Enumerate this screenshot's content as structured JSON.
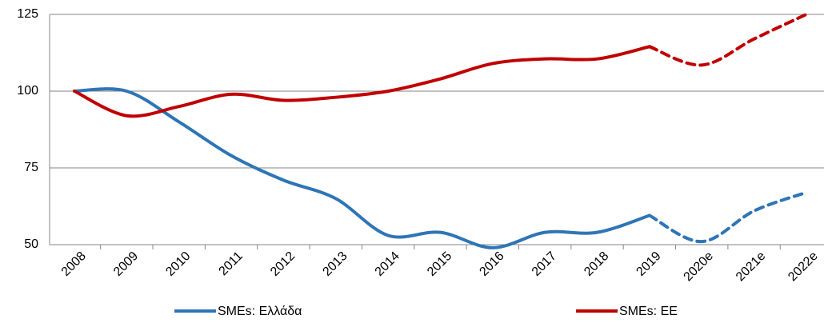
{
  "chart_data": {
    "type": "line",
    "categories": [
      "2008",
      "2009",
      "2010",
      "2011",
      "2012",
      "2013",
      "2014",
      "2015",
      "2016",
      "2017",
      "2018",
      "2019",
      "2020e",
      "2021e",
      "2022e"
    ],
    "series": [
      {
        "name": "SMEs: Ελλάδα",
        "color": "#2e75b6",
        "values": [
          100,
          100,
          90,
          79,
          71,
          65,
          53,
          54,
          49,
          54,
          54,
          59.5,
          51,
          61,
          67
        ]
      },
      {
        "name": "SMEs: ΕΕ",
        "color": "#c00000",
        "values": [
          100,
          92,
          95,
          99,
          97,
          98,
          100,
          104,
          109,
          110.5,
          110.5,
          114.5,
          108.5,
          117,
          125
        ]
      }
    ],
    "estimate_start": 11,
    "ylim": [
      50,
      125
    ],
    "yticks": [
      50,
      75,
      100,
      125
    ],
    "grid": true,
    "legend": "bottom"
  }
}
